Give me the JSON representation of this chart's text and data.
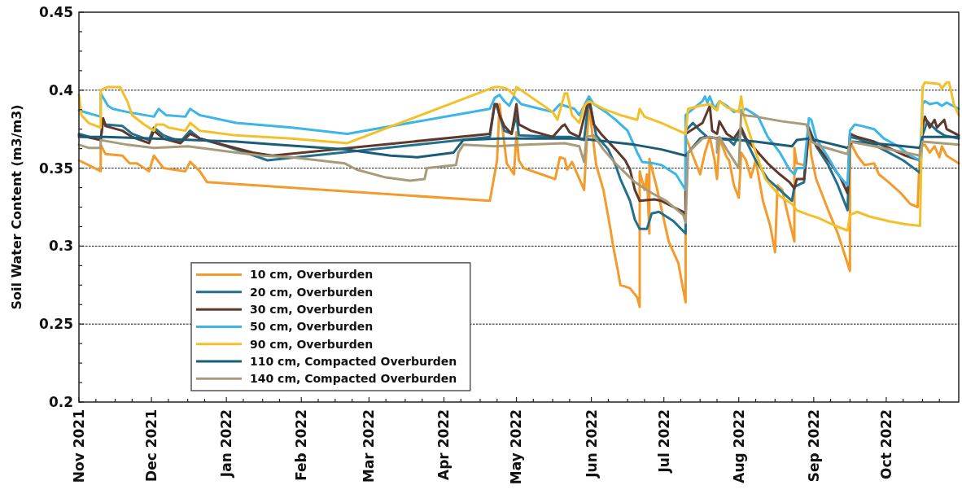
{
  "chart_data": {
    "type": "line",
    "ylabel": "Soil Water Content (m3/m3)",
    "xlim": [
      "2021-11-01",
      "2022-10-31"
    ],
    "xticks": [
      {
        "value": "2021-11-01",
        "label": "Nov 2021"
      },
      {
        "value": "2021-11-08",
        "label": null
      },
      {
        "value": "2021-11-16",
        "label": null
      },
      {
        "value": "2021-11-23",
        "label": null
      },
      {
        "value": "2021-12-01",
        "label": "Dec 2021"
      },
      {
        "value": "2021-12-08",
        "label": null
      },
      {
        "value": "2021-12-16",
        "label": null
      },
      {
        "value": "2021-12-23",
        "label": null
      },
      {
        "value": "2022-01-01",
        "label": "Jan 2022"
      },
      {
        "value": "2022-01-08",
        "label": null
      },
      {
        "value": "2022-01-16",
        "label": null
      },
      {
        "value": "2022-01-23",
        "label": null
      },
      {
        "value": "2022-02-01",
        "label": "Feb 2022"
      },
      {
        "value": "2022-02-08",
        "label": null
      },
      {
        "value": "2022-02-15",
        "label": null
      },
      {
        "value": "2022-02-22",
        "label": null
      },
      {
        "value": "2022-03-01",
        "label": "Mar 2022"
      },
      {
        "value": "2022-03-08",
        "label": null
      },
      {
        "value": "2022-03-16",
        "label": null
      },
      {
        "value": "2022-03-23",
        "label": null
      },
      {
        "value": "2022-04-01",
        "label": "Apr 2022"
      },
      {
        "value": "2022-04-08",
        "label": null
      },
      {
        "value": "2022-04-16",
        "label": null
      },
      {
        "value": "2022-04-23",
        "label": null
      },
      {
        "value": "2022-05-01",
        "label": "May 2022"
      },
      {
        "value": "2022-05-08",
        "label": null
      },
      {
        "value": "2022-05-16",
        "label": null
      },
      {
        "value": "2022-05-23",
        "label": null
      },
      {
        "value": "2022-06-01",
        "label": "Jun 2022"
      },
      {
        "value": "2022-06-08",
        "label": null
      },
      {
        "value": "2022-06-16",
        "label": null
      },
      {
        "value": "2022-06-23",
        "label": null
      },
      {
        "value": "2022-07-01",
        "label": "Jul 2022"
      },
      {
        "value": "2022-07-08",
        "label": null
      },
      {
        "value": "2022-07-16",
        "label": null
      },
      {
        "value": "2022-07-23",
        "label": null
      },
      {
        "value": "2022-08-01",
        "label": "Aug 2022"
      },
      {
        "value": "2022-08-08",
        "label": null
      },
      {
        "value": "2022-08-16",
        "label": null
      },
      {
        "value": "2022-08-23",
        "label": null
      },
      {
        "value": "2022-09-01",
        "label": "Sep 2022"
      },
      {
        "value": "2022-09-08",
        "label": null
      },
      {
        "value": "2022-09-16",
        "label": null
      },
      {
        "value": "2022-09-23",
        "label": null
      },
      {
        "value": "2022-10-01",
        "label": "Oct 2022"
      },
      {
        "value": "2022-10-08",
        "label": null
      },
      {
        "value": "2022-10-16",
        "label": null
      },
      {
        "value": "2022-10-23",
        "label": null
      }
    ],
    "ylim": [
      0.2,
      0.45
    ],
    "yticks": [
      0.2,
      {
        "value": 0.2125,
        "label": null
      },
      {
        "value": 0.225,
        "label": null
      },
      {
        "value": 0.2375,
        "label": null
      },
      0.25,
      {
        "value": 0.2625,
        "label": null
      },
      {
        "value": 0.275,
        "label": null
      },
      {
        "value": 0.2875,
        "label": null
      },
      0.3,
      {
        "value": 0.3125,
        "label": null
      },
      {
        "value": 0.325,
        "label": null
      },
      {
        "value": 0.3375,
        "label": null
      },
      0.35,
      {
        "value": 0.3625,
        "label": null
      },
      {
        "value": 0.375,
        "label": null
      },
      {
        "value": 0.3875,
        "label": null
      },
      0.4,
      {
        "value": 0.4125,
        "label": null
      },
      {
        "value": 0.425,
        "label": null
      },
      {
        "value": 0.4375,
        "label": null
      },
      0.45
    ],
    "grid": "y",
    "legend": "bottom left",
    "series": [
      {
        "name": "10 cm, Overburden",
        "color": "#f39c2d",
        "x": [
          "2021-11-01",
          "2021-11-10",
          "2021-11-10",
          "2021-11-12",
          "2021-11-19",
          "2021-11-22",
          "2021-11-25",
          "2021-11-30",
          "2021-12-02",
          "2021-12-06",
          "2021-12-15",
          "2021-12-17",
          "2021-12-21",
          "2021-12-24",
          "2022-04-20",
          "2022-04-23",
          "2022-04-24",
          "2022-04-27",
          "2022-04-30",
          "2022-05-01",
          "2022-05-02",
          "2022-05-04",
          "2022-05-17",
          "2022-05-19",
          "2022-05-21",
          "2022-05-22",
          "2022-05-24",
          "2022-05-29",
          "2022-05-31",
          "2022-06-03",
          "2022-06-06",
          "2022-06-09",
          "2022-06-10",
          "2022-06-12",
          "2022-06-13",
          "2022-06-17",
          "2022-06-20",
          "2022-06-21",
          "2022-06-21",
          "2022-06-23",
          "2022-06-24",
          "2022-06-25",
          "2022-06-25",
          "2022-06-28",
          "2022-07-03",
          "2022-07-07",
          "2022-07-09",
          "2022-07-10",
          "2022-07-10",
          "2022-07-16",
          "2022-07-18",
          "2022-07-20",
          "2022-07-22",
          "2022-07-23",
          "2022-07-24",
          "2022-07-27",
          "2022-07-28",
          "2022-07-30",
          "2022-08-01",
          "2022-08-02",
          "2022-08-04",
          "2022-08-06",
          "2022-08-08",
          "2022-08-11",
          "2022-08-14",
          "2022-08-16",
          "2022-08-17",
          "2022-08-19",
          "2022-08-21",
          "2022-08-24",
          "2022-08-24",
          "2022-08-25",
          "2022-08-28",
          "2022-08-29",
          "2022-08-30",
          "2022-08-31",
          "2022-09-02",
          "2022-09-07",
          "2022-09-11",
          "2022-09-16",
          "2022-09-16",
          "2022-09-19",
          "2022-09-22",
          "2022-09-26",
          "2022-09-28",
          "2022-10-02",
          "2022-10-07",
          "2022-10-11",
          "2022-10-14",
          "2022-10-15",
          "2022-10-17",
          "2022-10-19",
          "2022-10-21",
          "2022-10-23",
          "2022-10-24",
          "2022-10-26",
          "2022-10-31"
        ],
        "values": [
          0.355,
          0.348,
          0.365,
          0.359,
          0.358,
          0.353,
          0.353,
          0.348,
          0.358,
          0.35,
          0.348,
          0.354,
          0.348,
          0.341,
          0.329,
          0.355,
          0.391,
          0.353,
          0.346,
          0.373,
          0.355,
          0.35,
          0.343,
          0.357,
          0.356,
          0.349,
          0.354,
          0.336,
          0.39,
          0.352,
          0.336,
          0.31,
          0.3,
          0.284,
          0.275,
          0.273,
          0.267,
          0.261,
          0.348,
          0.336,
          0.346,
          0.308,
          0.356,
          0.338,
          0.303,
          0.289,
          0.272,
          0.264,
          0.37,
          0.346,
          0.36,
          0.37,
          0.355,
          0.343,
          0.369,
          0.357,
          0.355,
          0.339,
          0.331,
          0.36,
          0.355,
          0.344,
          0.355,
          0.329,
          0.313,
          0.296,
          0.339,
          0.336,
          0.322,
          0.303,
          0.363,
          0.353,
          0.352,
          0.355,
          0.374,
          0.358,
          0.343,
          0.323,
          0.308,
          0.284,
          0.367,
          0.358,
          0.352,
          0.353,
          0.346,
          0.341,
          0.334,
          0.327,
          0.325,
          0.364,
          0.365,
          0.36,
          0.364,
          0.357,
          0.364,
          0.358,
          0.353
        ]
      },
      {
        "name": "20 cm, Overburden",
        "color": "#22708e",
        "x": [
          "2021-11-01",
          "2021-11-10",
          "2021-11-11",
          "2021-11-12",
          "2021-11-19",
          "2021-11-23",
          "2021-11-30",
          "2021-12-02",
          "2021-12-06",
          "2021-12-13",
          "2021-12-17",
          "2021-12-21",
          "2022-01-01",
          "2022-01-07",
          "2022-01-18",
          "2022-04-20",
          "2022-04-22",
          "2022-04-23",
          "2022-04-26",
          "2022-04-29",
          "2022-05-01",
          "2022-05-02",
          "2022-05-16",
          "2022-05-23",
          "2022-05-29",
          "2022-05-31",
          "2022-06-03",
          "2022-06-08",
          "2022-06-11",
          "2022-06-13",
          "2022-06-15",
          "2022-06-17",
          "2022-06-19",
          "2022-06-21",
          "2022-06-24",
          "2022-06-26",
          "2022-06-29",
          "2022-07-05",
          "2022-07-10",
          "2022-07-10",
          "2022-07-13",
          "2022-07-16",
          "2022-07-19",
          "2022-07-23",
          "2022-07-28",
          "2022-07-30",
          "2022-08-02",
          "2022-08-08",
          "2022-08-13",
          "2022-08-18",
          "2022-08-23",
          "2022-08-24",
          "2022-08-28",
          "2022-08-30",
          "2022-09-02",
          "2022-09-07",
          "2022-09-11",
          "2022-09-15",
          "2022-09-16",
          "2022-09-19",
          "2022-09-26",
          "2022-10-02",
          "2022-10-08",
          "2022-10-15",
          "2022-10-16",
          "2022-10-18",
          "2022-10-22",
          "2022-10-25",
          "2022-10-31"
        ],
        "values": [
          0.372,
          0.368,
          0.381,
          0.378,
          0.377,
          0.372,
          0.368,
          0.376,
          0.371,
          0.367,
          0.374,
          0.369,
          0.364,
          0.361,
          0.355,
          0.37,
          0.391,
          0.389,
          0.374,
          0.372,
          0.384,
          0.371,
          0.37,
          0.37,
          0.368,
          0.395,
          0.371,
          0.362,
          0.352,
          0.343,
          0.336,
          0.329,
          0.317,
          0.311,
          0.311,
          0.321,
          0.322,
          0.316,
          0.308,
          0.374,
          0.379,
          0.374,
          0.37,
          0.369,
          0.368,
          0.365,
          0.374,
          0.355,
          0.343,
          0.336,
          0.329,
          0.338,
          0.341,
          0.376,
          0.364,
          0.352,
          0.339,
          0.323,
          0.37,
          0.369,
          0.365,
          0.36,
          0.355,
          0.347,
          0.371,
          0.38,
          0.374,
          0.371,
          0.369
        ]
      },
      {
        "name": "30 cm, Overburden",
        "color": "#5e392c",
        "x": [
          "2021-11-01",
          "2021-11-10",
          "2021-11-11",
          "2021-11-12",
          "2021-11-19",
          "2021-11-23",
          "2021-11-30",
          "2021-12-02",
          "2021-12-06",
          "2021-12-13",
          "2021-12-17",
          "2021-12-21",
          "2022-01-02",
          "2022-01-12",
          "2022-01-20",
          "2022-04-20",
          "2022-04-22",
          "2022-04-23",
          "2022-04-24",
          "2022-04-26",
          "2022-04-29",
          "2022-05-01",
          "2022-05-02",
          "2022-05-07",
          "2022-05-16",
          "2022-05-20",
          "2022-05-21",
          "2022-05-23",
          "2022-05-27",
          "2022-05-31",
          "2022-06-02",
          "2022-06-05",
          "2022-06-11",
          "2022-06-15",
          "2022-06-17",
          "2022-06-19",
          "2022-06-21",
          "2022-06-27",
          "2022-06-30",
          "2022-07-05",
          "2022-07-09",
          "2022-07-10",
          "2022-07-10",
          "2022-07-17",
          "2022-07-20",
          "2022-07-21",
          "2022-07-23",
          "2022-07-24",
          "2022-07-27",
          "2022-07-30",
          "2022-08-02",
          "2022-08-04",
          "2022-08-09",
          "2022-08-13",
          "2022-08-18",
          "2022-08-22",
          "2022-08-24",
          "2022-08-25",
          "2022-08-28",
          "2022-08-30",
          "2022-09-02",
          "2022-09-08",
          "2022-09-12",
          "2022-09-15",
          "2022-09-16",
          "2022-09-19",
          "2022-09-26",
          "2022-10-02",
          "2022-10-09",
          "2022-10-15",
          "2022-10-16",
          "2022-10-17",
          "2022-10-19",
          "2022-10-21",
          "2022-10-22",
          "2022-10-25",
          "2022-10-26",
          "2022-10-31"
        ],
        "values": [
          0.371,
          0.368,
          0.382,
          0.377,
          0.374,
          0.37,
          0.366,
          0.374,
          0.369,
          0.366,
          0.372,
          0.369,
          0.364,
          0.36,
          0.358,
          0.372,
          0.391,
          0.391,
          0.384,
          0.377,
          0.372,
          0.391,
          0.378,
          0.374,
          0.37,
          0.377,
          0.378,
          0.373,
          0.37,
          0.395,
          0.378,
          0.372,
          0.362,
          0.355,
          0.349,
          0.336,
          0.329,
          0.33,
          0.329,
          0.325,
          0.322,
          0.317,
          0.372,
          0.379,
          0.39,
          0.374,
          0.372,
          0.38,
          0.372,
          0.369,
          0.376,
          0.369,
          0.36,
          0.353,
          0.346,
          0.341,
          0.337,
          0.343,
          0.343,
          0.374,
          0.365,
          0.353,
          0.344,
          0.334,
          0.372,
          0.37,
          0.367,
          0.363,
          0.358,
          0.355,
          0.376,
          0.383,
          0.376,
          0.381,
          0.376,
          0.381,
          0.375,
          0.371
        ]
      },
      {
        "name": "50 cm, Overburden",
        "color": "#3db5e6",
        "x": [
          "2021-11-01",
          "2021-11-10",
          "2021-11-10",
          "2021-11-13",
          "2021-11-15",
          "2021-11-21",
          "2021-12-02",
          "2021-12-04",
          "2021-12-07",
          "2021-12-15",
          "2021-12-17",
          "2021-12-21",
          "2022-01-05",
          "2022-01-28",
          "2022-02-20",
          "2022-04-20",
          "2022-04-22",
          "2022-04-24",
          "2022-04-26",
          "2022-04-28",
          "2022-04-30",
          "2022-05-03",
          "2022-05-16",
          "2022-05-19",
          "2022-05-21",
          "2022-05-25",
          "2022-05-27",
          "2022-05-31",
          "2022-06-02",
          "2022-06-07",
          "2022-06-11",
          "2022-06-16",
          "2022-06-20",
          "2022-06-22",
          "2022-06-27",
          "2022-06-30",
          "2022-07-06",
          "2022-07-10",
          "2022-07-10",
          "2022-07-17",
          "2022-07-18",
          "2022-07-19",
          "2022-07-20",
          "2022-07-22",
          "2022-07-24",
          "2022-07-27",
          "2022-07-30",
          "2022-08-04",
          "2022-08-09",
          "2022-08-13",
          "2022-08-18",
          "2022-08-22",
          "2022-08-24",
          "2022-08-25",
          "2022-08-28",
          "2022-08-30",
          "2022-08-31",
          "2022-09-02",
          "2022-09-07",
          "2022-09-11",
          "2022-09-15",
          "2022-09-16",
          "2022-09-18",
          "2022-09-21",
          "2022-09-26",
          "2022-09-30",
          "2022-10-06",
          "2022-10-11",
          "2022-10-15",
          "2022-10-16",
          "2022-10-17",
          "2022-10-19",
          "2022-10-22",
          "2022-10-24",
          "2022-10-26",
          "2022-10-31"
        ],
        "values": [
          0.387,
          0.383,
          0.398,
          0.39,
          0.388,
          0.386,
          0.383,
          0.388,
          0.384,
          0.383,
          0.388,
          0.384,
          0.379,
          0.376,
          0.372,
          0.388,
          0.395,
          0.397,
          0.393,
          0.39,
          0.396,
          0.391,
          0.386,
          0.391,
          0.39,
          0.388,
          0.384,
          0.396,
          0.391,
          0.386,
          0.381,
          0.374,
          0.36,
          0.354,
          0.353,
          0.352,
          0.346,
          0.336,
          0.384,
          0.393,
          0.396,
          0.392,
          0.396,
          0.388,
          0.393,
          0.39,
          0.386,
          0.388,
          0.383,
          0.37,
          0.36,
          0.349,
          0.346,
          0.35,
          0.35,
          0.382,
          0.381,
          0.369,
          0.357,
          0.346,
          0.339,
          0.374,
          0.378,
          0.377,
          0.375,
          0.369,
          0.364,
          0.358,
          0.355,
          0.391,
          0.393,
          0.391,
          0.392,
          0.39,
          0.392,
          0.388
        ]
      },
      {
        "name": "90 cm, Overburden",
        "color": "#f4c02a",
        "x": [
          "2021-11-01",
          "2021-11-02",
          "2021-11-05",
          "2021-11-10",
          "2021-11-10",
          "2021-11-13",
          "2021-11-18",
          "2021-11-21",
          "2021-11-23",
          "2021-11-28",
          "2021-12-02",
          "2021-12-03",
          "2021-12-06",
          "2021-12-08",
          "2021-12-15",
          "2021-12-17",
          "2021-12-21",
          "2022-01-05",
          "2022-01-28",
          "2022-02-20",
          "2022-04-22",
          "2022-04-24",
          "2022-04-27",
          "2022-04-30",
          "2022-05-01",
          "2022-05-02",
          "2022-05-16",
          "2022-05-18",
          "2022-05-21",
          "2022-05-22",
          "2022-05-24",
          "2022-05-27",
          "2022-05-29",
          "2022-05-31",
          "2022-06-06",
          "2022-06-13",
          "2022-06-20",
          "2022-06-21",
          "2022-06-23",
          "2022-06-30",
          "2022-07-10",
          "2022-07-11",
          "2022-07-16",
          "2022-07-20",
          "2022-07-23",
          "2022-07-24",
          "2022-07-27",
          "2022-08-01",
          "2022-08-02",
          "2022-08-03",
          "2022-08-08",
          "2022-08-12",
          "2022-08-18",
          "2022-08-23",
          "2022-08-25",
          "2022-08-30",
          "2022-09-03",
          "2022-09-10",
          "2022-09-15",
          "2022-09-16",
          "2022-09-19",
          "2022-09-24",
          "2022-10-02",
          "2022-10-09",
          "2022-10-15",
          "2022-10-16",
          "2022-10-17",
          "2022-10-23",
          "2022-10-24",
          "2022-10-26",
          "2022-10-27",
          "2022-10-29",
          "2022-10-31"
        ],
        "values": [
          0.397,
          0.384,
          0.379,
          0.376,
          0.4,
          0.402,
          0.402,
          0.393,
          0.384,
          0.378,
          0.374,
          0.378,
          0.378,
          0.376,
          0.374,
          0.379,
          0.374,
          0.371,
          0.369,
          0.366,
          0.402,
          0.402,
          0.401,
          0.397,
          0.402,
          0.401,
          0.386,
          0.381,
          0.398,
          0.398,
          0.384,
          0.379,
          0.39,
          0.393,
          0.388,
          0.384,
          0.381,
          0.388,
          0.383,
          0.379,
          0.372,
          0.388,
          0.39,
          0.391,
          0.387,
          0.393,
          0.389,
          0.386,
          0.396,
          0.384,
          0.36,
          0.343,
          0.332,
          0.327,
          0.323,
          0.32,
          0.318,
          0.313,
          0.31,
          0.32,
          0.322,
          0.319,
          0.316,
          0.314,
          0.313,
          0.402,
          0.405,
          0.404,
          0.401,
          0.405,
          0.405,
          0.391,
          0.384
        ]
      },
      {
        "name": "110 cm, Compacted Overburden",
        "color": "#1b5d78",
        "x": [
          "2021-11-01",
          "2021-11-12",
          "2021-12-02",
          "2022-01-05",
          "2022-01-22",
          "2022-02-19",
          "2022-03-10",
          "2022-03-21",
          "2022-04-05",
          "2022-04-09",
          "2022-04-24",
          "2022-05-27",
          "2022-06-08",
          "2022-06-19",
          "2022-06-30",
          "2022-07-10",
          "2022-07-16",
          "2022-07-18",
          "2022-08-08",
          "2022-08-23",
          "2022-08-25",
          "2022-08-30",
          "2022-09-15",
          "2022-09-17",
          "2022-10-02",
          "2022-10-15",
          "2022-10-16",
          "2022-10-31"
        ],
        "values": [
          0.37,
          0.37,
          0.369,
          0.367,
          0.365,
          0.362,
          0.358,
          0.357,
          0.36,
          0.368,
          0.369,
          0.369,
          0.367,
          0.365,
          0.362,
          0.358,
          0.369,
          0.37,
          0.367,
          0.364,
          0.368,
          0.369,
          0.363,
          0.367,
          0.365,
          0.363,
          0.37,
          0.37
        ]
      },
      {
        "name": "140 cm, Compacted Overburden",
        "color": "#a99b79",
        "x": [
          "2021-11-01",
          "2021-11-05",
          "2021-11-10",
          "2021-11-10",
          "2021-11-21",
          "2021-12-02",
          "2021-12-16",
          "2022-01-05",
          "2022-01-16",
          "2022-01-28",
          "2022-02-08",
          "2022-02-19",
          "2022-02-24",
          "2022-03-08",
          "2022-03-18",
          "2022-03-24",
          "2022-03-25",
          "2022-04-06",
          "2022-04-07",
          "2022-04-09",
          "2022-04-22",
          "2022-05-05",
          "2022-05-21",
          "2022-05-27",
          "2022-05-29",
          "2022-05-30",
          "2022-06-02",
          "2022-06-06",
          "2022-06-11",
          "2022-06-19",
          "2022-06-26",
          "2022-07-02",
          "2022-07-09",
          "2022-07-10",
          "2022-07-11",
          "2022-07-17",
          "2022-07-20",
          "2022-07-23",
          "2022-07-23",
          "2022-07-24",
          "2022-07-27",
          "2022-08-01",
          "2022-08-02",
          "2022-08-03",
          "2022-08-08",
          "2022-08-19",
          "2022-08-29",
          "2022-08-31",
          "2022-09-04",
          "2022-09-15",
          "2022-09-16",
          "2022-09-26",
          "2022-10-15",
          "2022-10-16",
          "2022-10-31"
        ],
        "values": [
          0.365,
          0.363,
          0.363,
          0.368,
          0.365,
          0.363,
          0.364,
          0.36,
          0.358,
          0.357,
          0.355,
          0.353,
          0.349,
          0.344,
          0.342,
          0.343,
          0.35,
          0.352,
          0.36,
          0.365,
          0.364,
          0.365,
          0.366,
          0.364,
          0.354,
          0.37,
          0.371,
          0.362,
          0.353,
          0.341,
          0.334,
          0.329,
          0.32,
          0.315,
          0.36,
          0.369,
          0.37,
          0.369,
          0.36,
          0.37,
          0.362,
          0.35,
          0.386,
          0.384,
          0.383,
          0.38,
          0.378,
          0.367,
          0.364,
          0.359,
          0.367,
          0.364,
          0.358,
          0.367,
          0.365
        ]
      }
    ]
  }
}
